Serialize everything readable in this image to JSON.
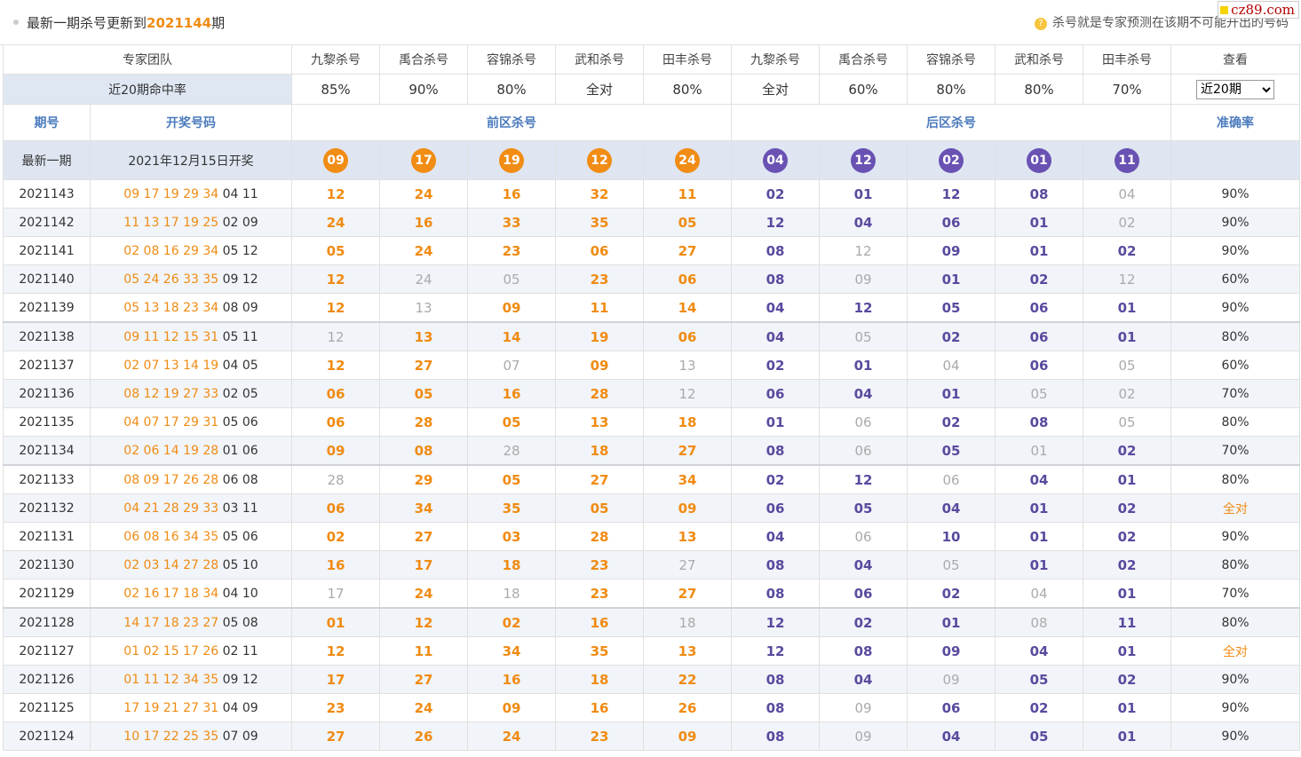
{
  "header": {
    "title_prefix": "最新一期杀号更新到",
    "issue": "2021144",
    "title_suffix": "期",
    "note_icon": "question-icon",
    "note": "杀号就是专家预测在该期不可能开出的号码"
  },
  "logo": {
    "text": "cz89.com"
  },
  "experts": {
    "label": "专家团队",
    "names": [
      "九黎杀号",
      "禹合杀号",
      "容锦杀号",
      "武和杀号",
      "田丰杀号",
      "九黎杀号",
      "禹合杀号",
      "容锦杀号",
      "武和杀号",
      "田丰杀号"
    ],
    "view_label": "查看"
  },
  "hit_rate": {
    "label": "近20期命中率",
    "values": [
      "85%",
      "90%",
      "80%",
      "全对",
      "80%",
      "全对",
      "60%",
      "80%",
      "80%",
      "70%"
    ],
    "select_value": "近20期"
  },
  "columns": {
    "issue": "期号",
    "draw": "开奖号码",
    "front": "前区杀号",
    "back": "后区杀号",
    "accuracy": "准确率"
  },
  "latest": {
    "label": "最新一期",
    "draw_date": "2021年12月15日开奖",
    "front_balls": [
      "09",
      "17",
      "19",
      "12",
      "24"
    ],
    "back_balls": [
      "04",
      "12",
      "02",
      "01",
      "11"
    ]
  },
  "colors": {
    "front_accent": "#f18c14",
    "back_accent": "#6a52b3",
    "miss": "#aaaaaa",
    "header_blue": "#4c7bbd"
  },
  "rows": [
    {
      "issue": "2021143",
      "front": "09 17 19 29 34",
      "back": "04 11",
      "kills": [
        "12",
        "24",
        "16",
        "32",
        "11",
        "02",
        "01",
        "12",
        "08",
        "04"
      ],
      "miss": [
        9
      ],
      "acc": "90%"
    },
    {
      "issue": "2021142",
      "front": "11 13 17 19 25",
      "back": "02 09",
      "kills": [
        "24",
        "16",
        "33",
        "35",
        "05",
        "12",
        "04",
        "06",
        "01",
        "02"
      ],
      "miss": [
        9
      ],
      "acc": "90%"
    },
    {
      "issue": "2021141",
      "front": "02 08 16 29 34",
      "back": "05 12",
      "kills": [
        "05",
        "24",
        "23",
        "06",
        "27",
        "08",
        "12",
        "09",
        "01",
        "02"
      ],
      "miss": [
        6
      ],
      "acc": "90%"
    },
    {
      "issue": "2021140",
      "front": "05 24 26 33 35",
      "back": "09 12",
      "kills": [
        "12",
        "24",
        "05",
        "23",
        "06",
        "08",
        "09",
        "01",
        "02",
        "12"
      ],
      "miss": [
        1,
        2,
        6,
        9
      ],
      "acc": "60%"
    },
    {
      "issue": "2021139",
      "front": "05 13 18 23 34",
      "back": "08 09",
      "kills": [
        "12",
        "13",
        "09",
        "11",
        "14",
        "04",
        "12",
        "05",
        "06",
        "01"
      ],
      "miss": [
        1
      ],
      "acc": "90%"
    },
    {
      "issue": "2021138",
      "front": "09 11 12 15 31",
      "back": "05 11",
      "kills": [
        "12",
        "13",
        "14",
        "19",
        "06",
        "04",
        "05",
        "02",
        "06",
        "01"
      ],
      "miss": [
        0,
        6
      ],
      "acc": "80%"
    },
    {
      "issue": "2021137",
      "front": "02 07 13 14 19",
      "back": "04 05",
      "kills": [
        "12",
        "27",
        "07",
        "09",
        "13",
        "02",
        "01",
        "04",
        "06",
        "05"
      ],
      "miss": [
        2,
        4,
        7,
        9
      ],
      "acc": "60%"
    },
    {
      "issue": "2021136",
      "front": "08 12 19 27 33",
      "back": "02 05",
      "kills": [
        "06",
        "05",
        "16",
        "28",
        "12",
        "06",
        "04",
        "01",
        "05",
        "02"
      ],
      "miss": [
        4,
        8,
        9
      ],
      "acc": "70%"
    },
    {
      "issue": "2021135",
      "front": "04 07 17 29 31",
      "back": "05 06",
      "kills": [
        "06",
        "28",
        "05",
        "13",
        "18",
        "01",
        "06",
        "02",
        "08",
        "05"
      ],
      "miss": [
        6,
        9
      ],
      "acc": "80%"
    },
    {
      "issue": "2021134",
      "front": "02 06 14 19 28",
      "back": "01 06",
      "kills": [
        "09",
        "08",
        "28",
        "18",
        "27",
        "08",
        "06",
        "05",
        "01",
        "02"
      ],
      "miss": [
        2,
        6,
        8
      ],
      "acc": "70%"
    },
    {
      "issue": "2021133",
      "front": "08 09 17 26 28",
      "back": "06 08",
      "kills": [
        "28",
        "29",
        "05",
        "27",
        "34",
        "02",
        "12",
        "06",
        "04",
        "01"
      ],
      "miss": [
        0,
        7
      ],
      "acc": "80%"
    },
    {
      "issue": "2021132",
      "front": "04 21 28 29 33",
      "back": "03 11",
      "kills": [
        "06",
        "34",
        "35",
        "05",
        "09",
        "06",
        "05",
        "04",
        "01",
        "02"
      ],
      "miss": [],
      "acc": "全对"
    },
    {
      "issue": "2021131",
      "front": "06 08 16 34 35",
      "back": "05 06",
      "kills": [
        "02",
        "27",
        "03",
        "28",
        "13",
        "04",
        "06",
        "10",
        "01",
        "02"
      ],
      "miss": [
        6
      ],
      "acc": "90%"
    },
    {
      "issue": "2021130",
      "front": "02 03 14 27 28",
      "back": "05 10",
      "kills": [
        "16",
        "17",
        "18",
        "23",
        "27",
        "08",
        "04",
        "05",
        "01",
        "02"
      ],
      "miss": [
        4,
        7
      ],
      "acc": "80%"
    },
    {
      "issue": "2021129",
      "front": "02 16 17 18 34",
      "back": "04 10",
      "kills": [
        "17",
        "24",
        "18",
        "23",
        "27",
        "08",
        "06",
        "02",
        "04",
        "01"
      ],
      "miss": [
        0,
        2,
        8
      ],
      "acc": "70%"
    },
    {
      "issue": "2021128",
      "front": "14 17 18 23 27",
      "back": "05 08",
      "kills": [
        "01",
        "12",
        "02",
        "16",
        "18",
        "12",
        "02",
        "01",
        "08",
        "11"
      ],
      "miss": [
        4,
        8
      ],
      "acc": "80%"
    },
    {
      "issue": "2021127",
      "front": "01 02 15 17 26",
      "back": "02 11",
      "kills": [
        "12",
        "11",
        "34",
        "35",
        "13",
        "12",
        "08",
        "09",
        "04",
        "01"
      ],
      "miss": [],
      "acc": "全对"
    },
    {
      "issue": "2021126",
      "front": "01 11 12 34 35",
      "back": "09 12",
      "kills": [
        "17",
        "27",
        "16",
        "18",
        "22",
        "08",
        "04",
        "09",
        "05",
        "02"
      ],
      "miss": [
        7
      ],
      "acc": "90%"
    },
    {
      "issue": "2021125",
      "front": "17 19 21 27 31",
      "back": "04 09",
      "kills": [
        "23",
        "24",
        "09",
        "16",
        "26",
        "08",
        "09",
        "06",
        "02",
        "01"
      ],
      "miss": [
        6
      ],
      "acc": "90%"
    },
    {
      "issue": "2021124",
      "front": "10 17 22 25 35",
      "back": "07 09",
      "kills": [
        "27",
        "26",
        "24",
        "23",
        "09",
        "08",
        "09",
        "04",
        "05",
        "01"
      ],
      "miss": [
        6
      ],
      "acc": "90%"
    }
  ]
}
